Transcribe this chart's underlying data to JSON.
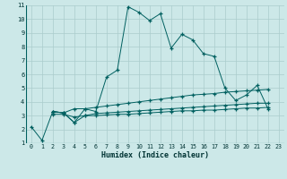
{
  "xlabel": "Humidex (Indice chaleur)",
  "bg_color": "#cce8e8",
  "grid_color": "#aacccc",
  "line_color": "#006060",
  "xlim": [
    -0.5,
    23.5
  ],
  "ylim": [
    1,
    11
  ],
  "xticks": [
    0,
    1,
    2,
    3,
    4,
    5,
    6,
    7,
    8,
    9,
    10,
    11,
    12,
    13,
    14,
    15,
    16,
    17,
    18,
    19,
    20,
    21,
    22,
    23
  ],
  "yticks": [
    1,
    2,
    3,
    4,
    5,
    6,
    7,
    8,
    9,
    10,
    11
  ],
  "series1_x": [
    0,
    1,
    2,
    3,
    4,
    5,
    6,
    7,
    8,
    9,
    10,
    11,
    12,
    13,
    14,
    15,
    16,
    17,
    18,
    19,
    20,
    21,
    22
  ],
  "series1_y": [
    2.2,
    1.2,
    3.3,
    3.2,
    2.5,
    3.5,
    3.3,
    5.8,
    6.3,
    10.9,
    10.5,
    9.9,
    10.4,
    7.9,
    8.9,
    8.5,
    7.5,
    7.3,
    5.0,
    4.1,
    4.5,
    5.2,
    3.5
  ],
  "series2_x": [
    2,
    3,
    4,
    5,
    6,
    7,
    8,
    9,
    10,
    11,
    12,
    13,
    14,
    15,
    16,
    17,
    18,
    19,
    20,
    21,
    22
  ],
  "series2_y": [
    3.3,
    3.2,
    3.5,
    3.5,
    3.6,
    3.7,
    3.8,
    3.9,
    4.0,
    4.1,
    4.2,
    4.3,
    4.4,
    4.5,
    4.55,
    4.6,
    4.7,
    4.75,
    4.8,
    4.85,
    4.9
  ],
  "series3_x": [
    2,
    3,
    4,
    5,
    6,
    7,
    8,
    9,
    10,
    11,
    12,
    13,
    14,
    15,
    16,
    17,
    18,
    19,
    20,
    21,
    22
  ],
  "series3_y": [
    3.3,
    3.2,
    2.5,
    3.0,
    3.15,
    3.2,
    3.25,
    3.3,
    3.35,
    3.4,
    3.45,
    3.5,
    3.55,
    3.6,
    3.65,
    3.7,
    3.75,
    3.8,
    3.85,
    3.9,
    3.9
  ],
  "series4_x": [
    2,
    3,
    4,
    5,
    6,
    7,
    8,
    9,
    10,
    11,
    12,
    13,
    14,
    15,
    16,
    17,
    18,
    19,
    20,
    21,
    22
  ],
  "series4_y": [
    3.1,
    3.1,
    2.9,
    3.0,
    3.0,
    3.05,
    3.1,
    3.1,
    3.15,
    3.2,
    3.25,
    3.3,
    3.35,
    3.35,
    3.4,
    3.4,
    3.45,
    3.5,
    3.55,
    3.55,
    3.6
  ]
}
